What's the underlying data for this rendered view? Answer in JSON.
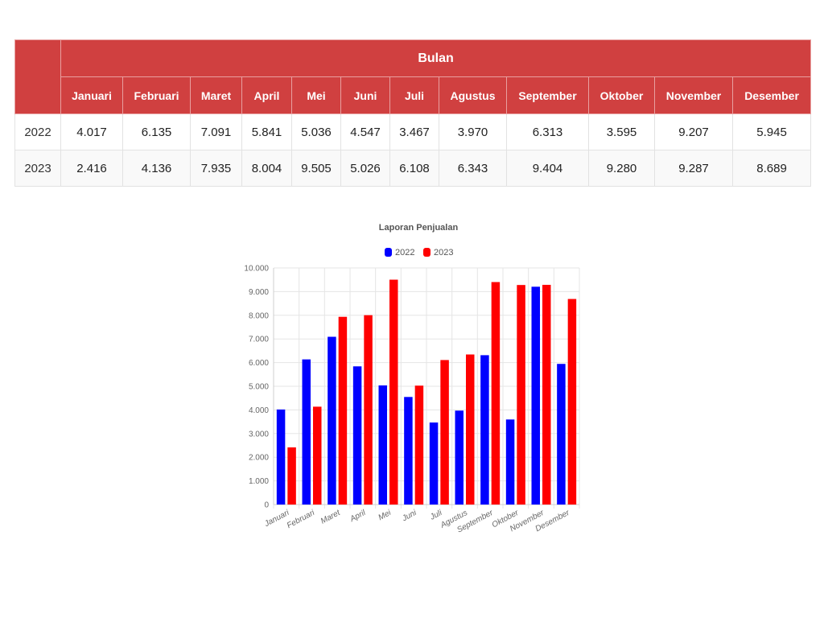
{
  "table": {
    "group_header": "Bulan",
    "months": [
      "Januari",
      "Februari",
      "Maret",
      "April",
      "Mei",
      "Juni",
      "Juli",
      "Agustus",
      "September",
      "Oktober",
      "November",
      "Desember"
    ],
    "rows": [
      {
        "year": "2022",
        "values": [
          "4.017",
          "6.135",
          "7.091",
          "5.841",
          "5.036",
          "4.547",
          "3.467",
          "3.970",
          "6.313",
          "3.595",
          "9.207",
          "5.945"
        ]
      },
      {
        "year": "2023",
        "values": [
          "2.416",
          "4.136",
          "7.935",
          "8.004",
          "9.505",
          "5.026",
          "6.108",
          "6.343",
          "9.404",
          "9.280",
          "9.287",
          "8.689"
        ]
      }
    ]
  },
  "chart_data": {
    "type": "bar",
    "title": "Laporan Penjualan",
    "categories": [
      "Januari",
      "Februari",
      "Maret",
      "April",
      "Mei",
      "Juni",
      "Juli",
      "Agustus",
      "September",
      "Oktober",
      "November",
      "Desember"
    ],
    "series": [
      {
        "name": "2022",
        "color": "#0000ff",
        "values": [
          4017,
          6135,
          7091,
          5841,
          5036,
          4547,
          3467,
          3970,
          6313,
          3595,
          9207,
          5945
        ]
      },
      {
        "name": "2023",
        "color": "#ff0000",
        "values": [
          2416,
          4136,
          7935,
          8004,
          9505,
          5026,
          6108,
          6343,
          9404,
          9280,
          9287,
          8689
        ]
      }
    ],
    "ylim": [
      0,
      10000
    ],
    "yticks": [
      0,
      1000,
      2000,
      3000,
      4000,
      5000,
      6000,
      7000,
      8000,
      9000,
      10000
    ],
    "ytick_labels": [
      "0",
      "1.000",
      "2.000",
      "3.000",
      "4.000",
      "5.000",
      "6.000",
      "7.000",
      "8.000",
      "9.000",
      "10.000"
    ],
    "legend_position": "top",
    "grid": true
  }
}
